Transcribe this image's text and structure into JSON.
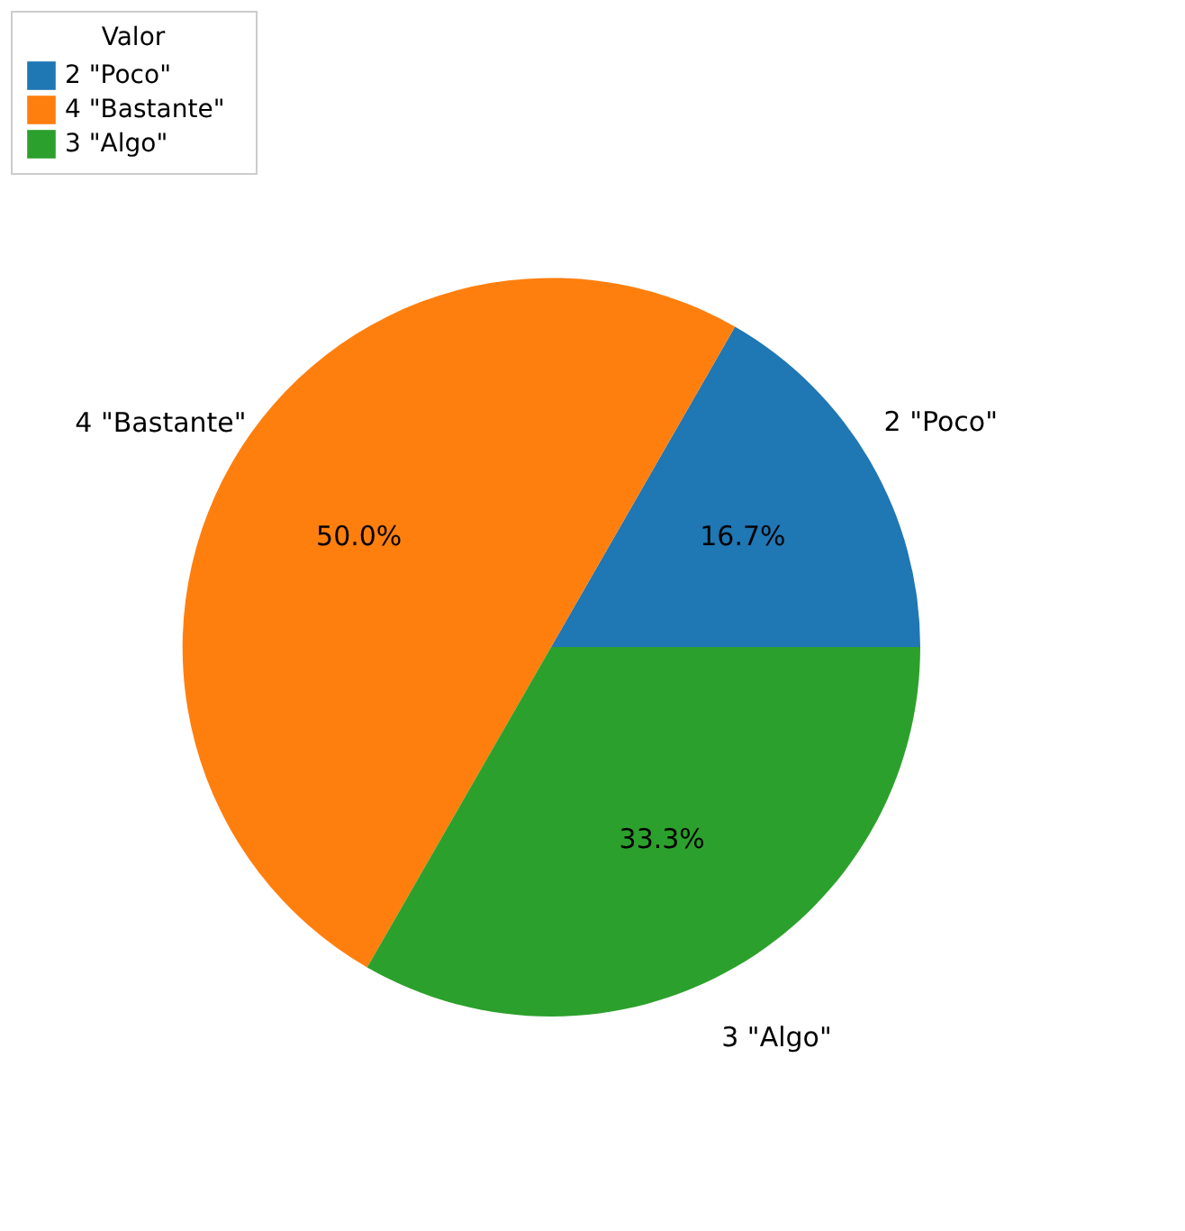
{
  "chart_data": {
    "type": "pie",
    "legend_title": "Valor",
    "legend": "top",
    "categories": [
      "2   \"Poco\"",
      "4   \"Bastante\"",
      "3   \"Algo\""
    ],
    "values": [
      16.7,
      50.0,
      33.3
    ],
    "colors": [
      "#1f77b4",
      "#ff7f0e",
      "#2ca02c"
    ],
    "value_labels": [
      "16.7%",
      "50.0%",
      "33.3%"
    ]
  }
}
